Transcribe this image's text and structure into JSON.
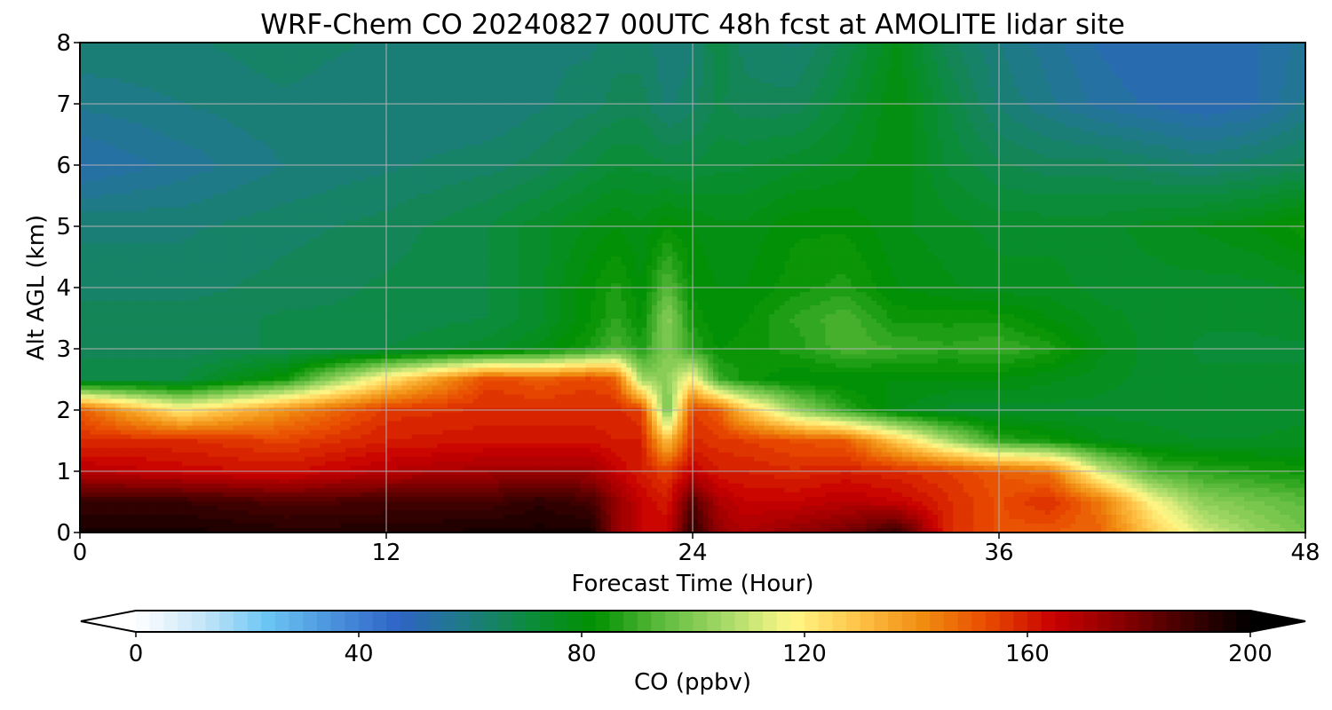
{
  "chart_data": {
    "type": "heatmap",
    "title": "WRF-Chem CO  20240827 00UTC 48h fcst at AMOLITE lidar site",
    "xlabel": "Forecast Time (Hour)",
    "ylabel": "Alt AGL (km)",
    "xlim": [
      0,
      48
    ],
    "ylim": [
      0,
      8
    ],
    "x_ticks": [
      0,
      12,
      24,
      36,
      48
    ],
    "y_ticks": [
      0,
      1,
      2,
      3,
      4,
      5,
      6,
      7,
      8
    ],
    "grid": true,
    "colorbar": {
      "label": "CO  (ppbv)",
      "range": [
        0,
        200
      ],
      "ticks": [
        0,
        40,
        80,
        120,
        160,
        200
      ],
      "extend": "both",
      "orientation": "horizontal",
      "colors": [
        "#ffffff",
        "#c6e6f8",
        "#6cc6f4",
        "#4a92dc",
        "#2e64c6",
        "#1e7a86",
        "#0c8c3c",
        "#009000",
        "#5cba3c",
        "#a6da68",
        "#fff888",
        "#ffc448",
        "#f08c10",
        "#e84a00",
        "#c80000",
        "#8a0000",
        "#420000",
        "#000000"
      ]
    },
    "x": [
      0,
      4,
      8,
      12,
      16,
      18,
      20,
      21,
      22,
      23,
      24,
      25,
      26,
      28,
      30,
      32,
      34,
      36,
      38,
      40,
      42,
      44,
      46,
      48
    ],
    "y": [
      0,
      0.5,
      1,
      1.5,
      2,
      2.5,
      3,
      3.5,
      4,
      5,
      6,
      7,
      8
    ],
    "z": [
      [
        196,
        196,
        194,
        194,
        196,
        196,
        196,
        175,
        165,
        165,
        192,
        175,
        170,
        175,
        180,
        190,
        158,
        152,
        150,
        148,
        128,
        112,
        104,
        98
      ],
      [
        190,
        190,
        186,
        188,
        188,
        192,
        188,
        175,
        165,
        160,
        186,
        170,
        165,
        165,
        168,
        165,
        158,
        152,
        158,
        145,
        118,
        102,
        98,
        94
      ],
      [
        168,
        164,
        162,
        168,
        172,
        172,
        172,
        165,
        160,
        155,
        165,
        160,
        160,
        158,
        160,
        158,
        155,
        150,
        145,
        112,
        92,
        88,
        86,
        84
      ],
      [
        158,
        158,
        154,
        160,
        162,
        162,
        162,
        160,
        160,
        130,
        158,
        156,
        155,
        152,
        150,
        128,
        106,
        88,
        84,
        78,
        76,
        75,
        75,
        76
      ],
      [
        150,
        120,
        140,
        156,
        158,
        158,
        158,
        158,
        155,
        95,
        155,
        150,
        130,
        104,
        88,
        78,
        74,
        74,
        74,
        74,
        74,
        73,
        74,
        74
      ],
      [
        70,
        70,
        84,
        122,
        154,
        150,
        154,
        150,
        104,
        102,
        120,
        90,
        84,
        80,
        80,
        80,
        80,
        80,
        78,
        76,
        74,
        73,
        73,
        73
      ],
      [
        66,
        66,
        68,
        70,
        74,
        78,
        86,
        92,
        86,
        100,
        88,
        82,
        84,
        86,
        92,
        90,
        88,
        90,
        86,
        78,
        74,
        72,
        72,
        72
      ],
      [
        66,
        66,
        68,
        68,
        70,
        74,
        82,
        88,
        82,
        102,
        84,
        80,
        82,
        88,
        92,
        84,
        84,
        84,
        80,
        76,
        74,
        73,
        73,
        74
      ],
      [
        64,
        64,
        66,
        68,
        70,
        74,
        82,
        86,
        80,
        94,
        82,
        80,
        80,
        84,
        86,
        80,
        78,
        76,
        76,
        74,
        74,
        74,
        74,
        76
      ],
      [
        62,
        62,
        64,
        66,
        70,
        74,
        78,
        80,
        78,
        82,
        80,
        78,
        78,
        82,
        82,
        78,
        76,
        74,
        74,
        74,
        76,
        78,
        80,
        84
      ],
      [
        52,
        56,
        60,
        62,
        64,
        66,
        70,
        72,
        72,
        70,
        70,
        72,
        72,
        74,
        76,
        80,
        72,
        68,
        66,
        66,
        64,
        62,
        64,
        66
      ],
      [
        58,
        60,
        62,
        60,
        60,
        62,
        64,
        66,
        66,
        62,
        64,
        68,
        66,
        66,
        72,
        80,
        70,
        62,
        58,
        54,
        52,
        50,
        52,
        58
      ],
      [
        62,
        62,
        64,
        62,
        60,
        62,
        62,
        64,
        64,
        60,
        62,
        70,
        64,
        62,
        68,
        78,
        66,
        60,
        56,
        52,
        50,
        50,
        52,
        56
      ]
    ]
  }
}
